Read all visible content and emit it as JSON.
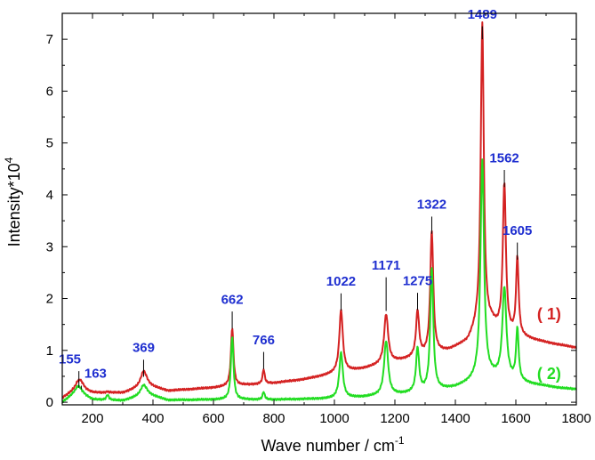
{
  "chart_data": {
    "type": "line",
    "title": "",
    "xlabel": "Wave number / cm",
    "xlabel_sup": "-1",
    "ylabel": "Intensity*10",
    "ylabel_sup": "4",
    "xlim": [
      100,
      1800
    ],
    "ylim": [
      -0.05,
      7.5
    ],
    "x_ticks": [
      "200",
      "400",
      "600",
      "800",
      "1000",
      "1200",
      "1400",
      "1600",
      "1800"
    ],
    "y_ticks": [
      "0",
      "1",
      "2",
      "3",
      "4",
      "5",
      "6",
      "7"
    ],
    "grid": false,
    "colors": {
      "axis": "#000000",
      "peak_label": "#1f2fd0"
    },
    "series": [
      {
        "key": "s1",
        "color": "#d42222",
        "legend": "( 1)",
        "legend_at": [
          1710,
          1.6
        ],
        "baseline": [
          [
            100,
            0.08
          ],
          [
            150,
            0.25
          ],
          [
            200,
            0.18
          ],
          [
            300,
            0.18
          ],
          [
            380,
            0.32
          ],
          [
            450,
            0.22
          ],
          [
            600,
            0.28
          ],
          [
            700,
            0.33
          ],
          [
            800,
            0.37
          ],
          [
            900,
            0.44
          ],
          [
            1000,
            0.55
          ],
          [
            1100,
            0.65
          ],
          [
            1200,
            0.78
          ],
          [
            1300,
            0.9
          ],
          [
            1380,
            1.0
          ],
          [
            1440,
            1.15
          ],
          [
            1470,
            1.4
          ],
          [
            1520,
            1.5
          ],
          [
            1540,
            1.4
          ],
          [
            1580,
            1.3
          ],
          [
            1620,
            1.25
          ],
          [
            1700,
            1.15
          ],
          [
            1800,
            1.05
          ]
        ],
        "peaks": [
          [
            155,
            0.13,
            14
          ],
          [
            163,
            0.08,
            12
          ],
          [
            250,
            0.02,
            6
          ],
          [
            369,
            0.3,
            12
          ],
          [
            662,
            1.12,
            5
          ],
          [
            766,
            0.28,
            4
          ],
          [
            1022,
            1.2,
            7
          ],
          [
            1171,
            0.95,
            8
          ],
          [
            1275,
            0.88,
            6
          ],
          [
            1322,
            2.35,
            6
          ],
          [
            1489,
            5.85,
            6
          ],
          [
            1562,
            2.85,
            6
          ],
          [
            1605,
            1.5,
            5
          ]
        ]
      },
      {
        "key": "s2",
        "color": "#22dd22",
        "legend": "( 2)",
        "legend_at": [
          1710,
          0.45
        ],
        "baseline": [
          [
            100,
            0.0
          ],
          [
            150,
            0.2
          ],
          [
            200,
            0.05
          ],
          [
            300,
            0.03
          ],
          [
            380,
            0.15
          ],
          [
            450,
            0.04
          ],
          [
            600,
            0.05
          ],
          [
            800,
            0.05
          ],
          [
            1000,
            0.07
          ],
          [
            1100,
            0.1
          ],
          [
            1200,
            0.14
          ],
          [
            1300,
            0.2
          ],
          [
            1400,
            0.28
          ],
          [
            1470,
            0.42
          ],
          [
            1520,
            0.48
          ],
          [
            1580,
            0.42
          ],
          [
            1650,
            0.35
          ],
          [
            1750,
            0.27
          ],
          [
            1800,
            0.25
          ]
        ],
        "peaks": [
          [
            155,
            0.12,
            14
          ],
          [
            250,
            0.1,
            5
          ],
          [
            369,
            0.2,
            12
          ],
          [
            662,
            1.22,
            5
          ],
          [
            766,
            0.15,
            4
          ],
          [
            1022,
            0.88,
            7
          ],
          [
            1171,
            1.05,
            8
          ],
          [
            1275,
            0.85,
            6
          ],
          [
            1322,
            2.35,
            6
          ],
          [
            1489,
            4.2,
            7
          ],
          [
            1562,
            1.75,
            8
          ],
          [
            1605,
            1.0,
            5
          ]
        ]
      }
    ],
    "peak_labels": [
      {
        "text": "155",
        "x": 155,
        "y": 0.28,
        "lx": 125,
        "ly": 0.75
      },
      {
        "text": "163",
        "x": 163,
        "y": 0.25,
        "lx": 210,
        "ly": 0.47
      },
      {
        "text": "369",
        "x": 369,
        "y": 0.49,
        "lx": 369,
        "ly": 0.97
      },
      {
        "text": "662",
        "x": 662,
        "y": 1.42,
        "lx": 662,
        "ly": 1.9
      },
      {
        "text": "766",
        "x": 766,
        "y": 0.64,
        "lx": 766,
        "ly": 1.12
      },
      {
        "text": "1022",
        "x": 1022,
        "y": 1.77,
        "lx": 1022,
        "ly": 2.25
      },
      {
        "text": "1171",
        "x": 1171,
        "y": 1.76,
        "lx": 1171,
        "ly": 2.56
      },
      {
        "text": "1275",
        "x": 1275,
        "y": 1.78,
        "lx": 1275,
        "ly": 2.26
      },
      {
        "text": "1322",
        "x": 1322,
        "y": 3.25,
        "lx": 1322,
        "ly": 3.73
      },
      {
        "text": "1489",
        "x": 1489,
        "y": 7.0,
        "lx": 1489,
        "ly": 7.4
      },
      {
        "text": "1562",
        "x": 1562,
        "y": 4.15,
        "lx": 1562,
        "ly": 4.63
      },
      {
        "text": "1605",
        "x": 1605,
        "y": 2.75,
        "lx": 1605,
        "ly": 3.23
      }
    ]
  }
}
